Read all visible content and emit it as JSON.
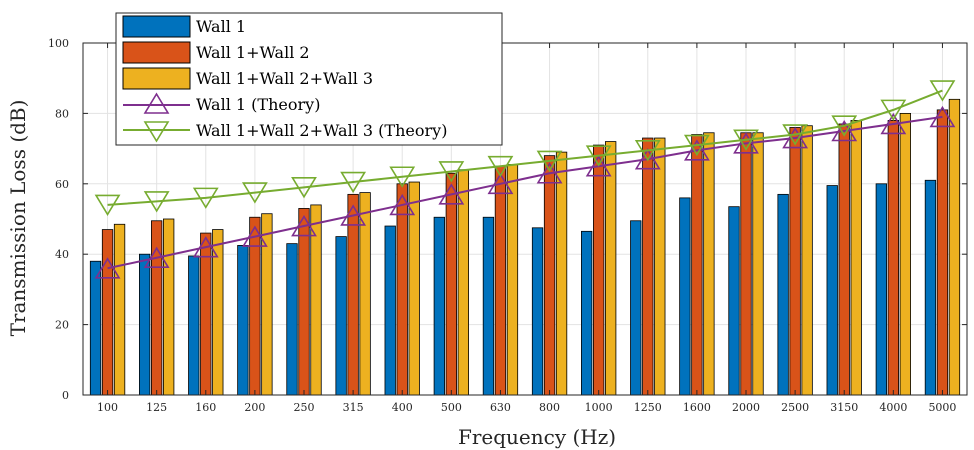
{
  "chart_data": {
    "type": "bar",
    "xlabel": "Frequency (Hz)",
    "ylabel": "Transmission Loss (dB)",
    "ylim": [
      0,
      100
    ],
    "yticks": [
      0,
      20,
      40,
      60,
      80,
      100
    ],
    "grid": true,
    "legend_position": "top-left",
    "categories": [
      "100",
      "125",
      "160",
      "200",
      "250",
      "315",
      "400",
      "500",
      "630",
      "800",
      "1000",
      "1250",
      "1600",
      "2000",
      "2500",
      "3150",
      "4000",
      "5000"
    ],
    "series": [
      {
        "name": "Wall 1",
        "kind": "bar",
        "color": "#0072BD",
        "values": [
          38,
          40,
          39.5,
          42.5,
          43,
          45,
          48,
          50.5,
          50.5,
          47.5,
          46.5,
          49.5,
          56,
          53.5,
          57,
          59.5,
          60,
          61
        ]
      },
      {
        "name": "Wall 1+Wall 2",
        "kind": "bar",
        "color": "#D95319",
        "values": [
          47,
          49.5,
          46,
          50.5,
          53,
          57,
          60,
          63,
          65,
          68,
          71,
          73,
          74,
          74.5,
          76,
          77,
          78,
          81
        ]
      },
      {
        "name": "Wall 1+Wall 2+Wall 3",
        "kind": "bar",
        "color": "#EDB120",
        "values": [
          48.5,
          50,
          47,
          51.5,
          54,
          57.5,
          60.5,
          64,
          65.5,
          69,
          72,
          73,
          74.5,
          74.5,
          76.5,
          78,
          80,
          84
        ]
      },
      {
        "name": "Wall 1 (Theory)",
        "kind": "line",
        "marker": "triangle-up",
        "color": "#7E2F8E",
        "values": [
          36,
          39,
          42,
          45,
          48,
          51,
          54,
          57,
          60,
          63,
          65,
          67,
          69.5,
          71.5,
          73,
          75,
          77,
          79
        ]
      },
      {
        "name": "Wall 1+Wall 2+Wall 3 (Theory)",
        "kind": "line",
        "marker": "triangle-down",
        "color": "#77AC30",
        "values": [
          54,
          55,
          56,
          57.5,
          59,
          60.5,
          62,
          63.5,
          65,
          66.5,
          68,
          69.5,
          71,
          72.5,
          74,
          76.5,
          81,
          86.5
        ]
      }
    ]
  }
}
